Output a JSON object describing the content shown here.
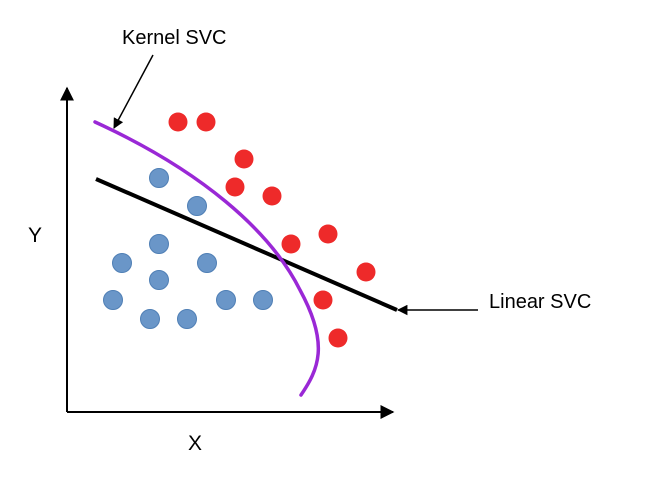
{
  "labels": {
    "kernel": "Kernel SVC",
    "linear": "Linear SVC",
    "x_axis": "X",
    "y_axis": "Y"
  },
  "colors": {
    "class_blue": "#6a96c8",
    "class_red": "#ee2a2a",
    "kernel_boundary": "#9a28d6",
    "linear_boundary": "#000000",
    "axes": "#000000"
  }
}
